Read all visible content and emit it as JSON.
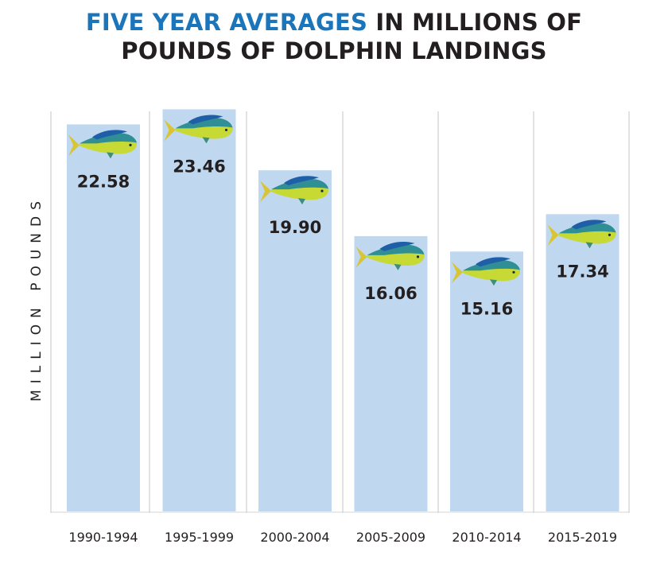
{
  "title": {
    "highlight": "FIVE YEAR AVERAGES",
    "rest_line1": " IN MILLIONS OF",
    "line2": "POUNDS OF DOLPHIN LANDINGS"
  },
  "colors": {
    "highlight": "#1b75bb",
    "bar": "#c0d8ef",
    "text": "#231f20"
  },
  "bar_icon": "mahi-mahi-fish-icon",
  "chart_data": {
    "type": "bar",
    "categories": [
      "1990-1994",
      "1995-1999",
      "2000-2004",
      "2005-2009",
      "2010-2014",
      "2015-2019"
    ],
    "values": [
      22.58,
      23.46,
      19.9,
      16.06,
      15.16,
      17.34
    ],
    "value_labels": [
      "22.58",
      "23.46",
      "19.90",
      "16.06",
      "15.16",
      "17.34"
    ],
    "title": "FIVE YEAR AVERAGES IN MILLIONS OF POUNDS OF DOLPHIN LANDINGS",
    "xlabel": "",
    "ylabel": "MILLION POUNDS",
    "grid": "vertical separators",
    "legend": "none"
  }
}
